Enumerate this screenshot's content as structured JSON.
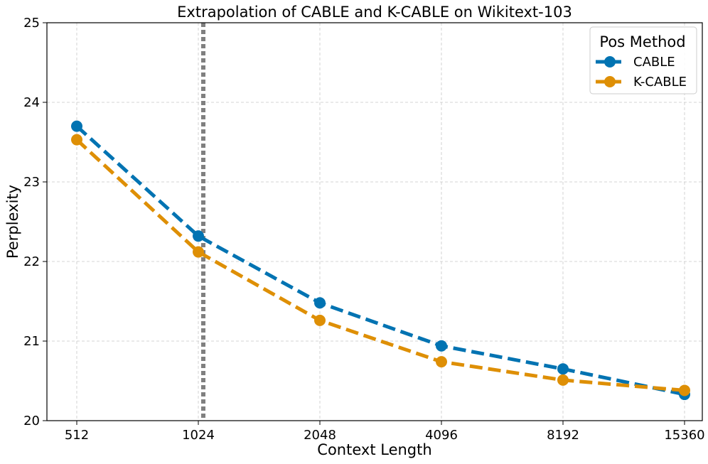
{
  "chart_data": {
    "type": "line",
    "title": "Extrapolation of CABLE and K-CABLE on Wikitext-103",
    "xlabel": "Context Length",
    "ylabel": "Perplexity",
    "categories": [
      "512",
      "1024",
      "2048",
      "4096",
      "8192",
      "15360"
    ],
    "ylim": [
      20,
      25
    ],
    "yticks": [
      "20",
      "21",
      "22",
      "23",
      "24",
      "25"
    ],
    "grid": true,
    "reference_line": {
      "category": "1024",
      "style": "dotted",
      "color": "#808080"
    },
    "legend": {
      "title": "Pos Method",
      "placement": "top-right"
    },
    "series": [
      {
        "name": "CABLE",
        "color": "#0173b2",
        "values": [
          23.7,
          22.32,
          21.48,
          20.94,
          20.65,
          20.33
        ]
      },
      {
        "name": "K-CABLE",
        "color": "#de8f05",
        "values": [
          23.53,
          22.12,
          21.26,
          20.74,
          20.51,
          20.38
        ]
      }
    ]
  }
}
